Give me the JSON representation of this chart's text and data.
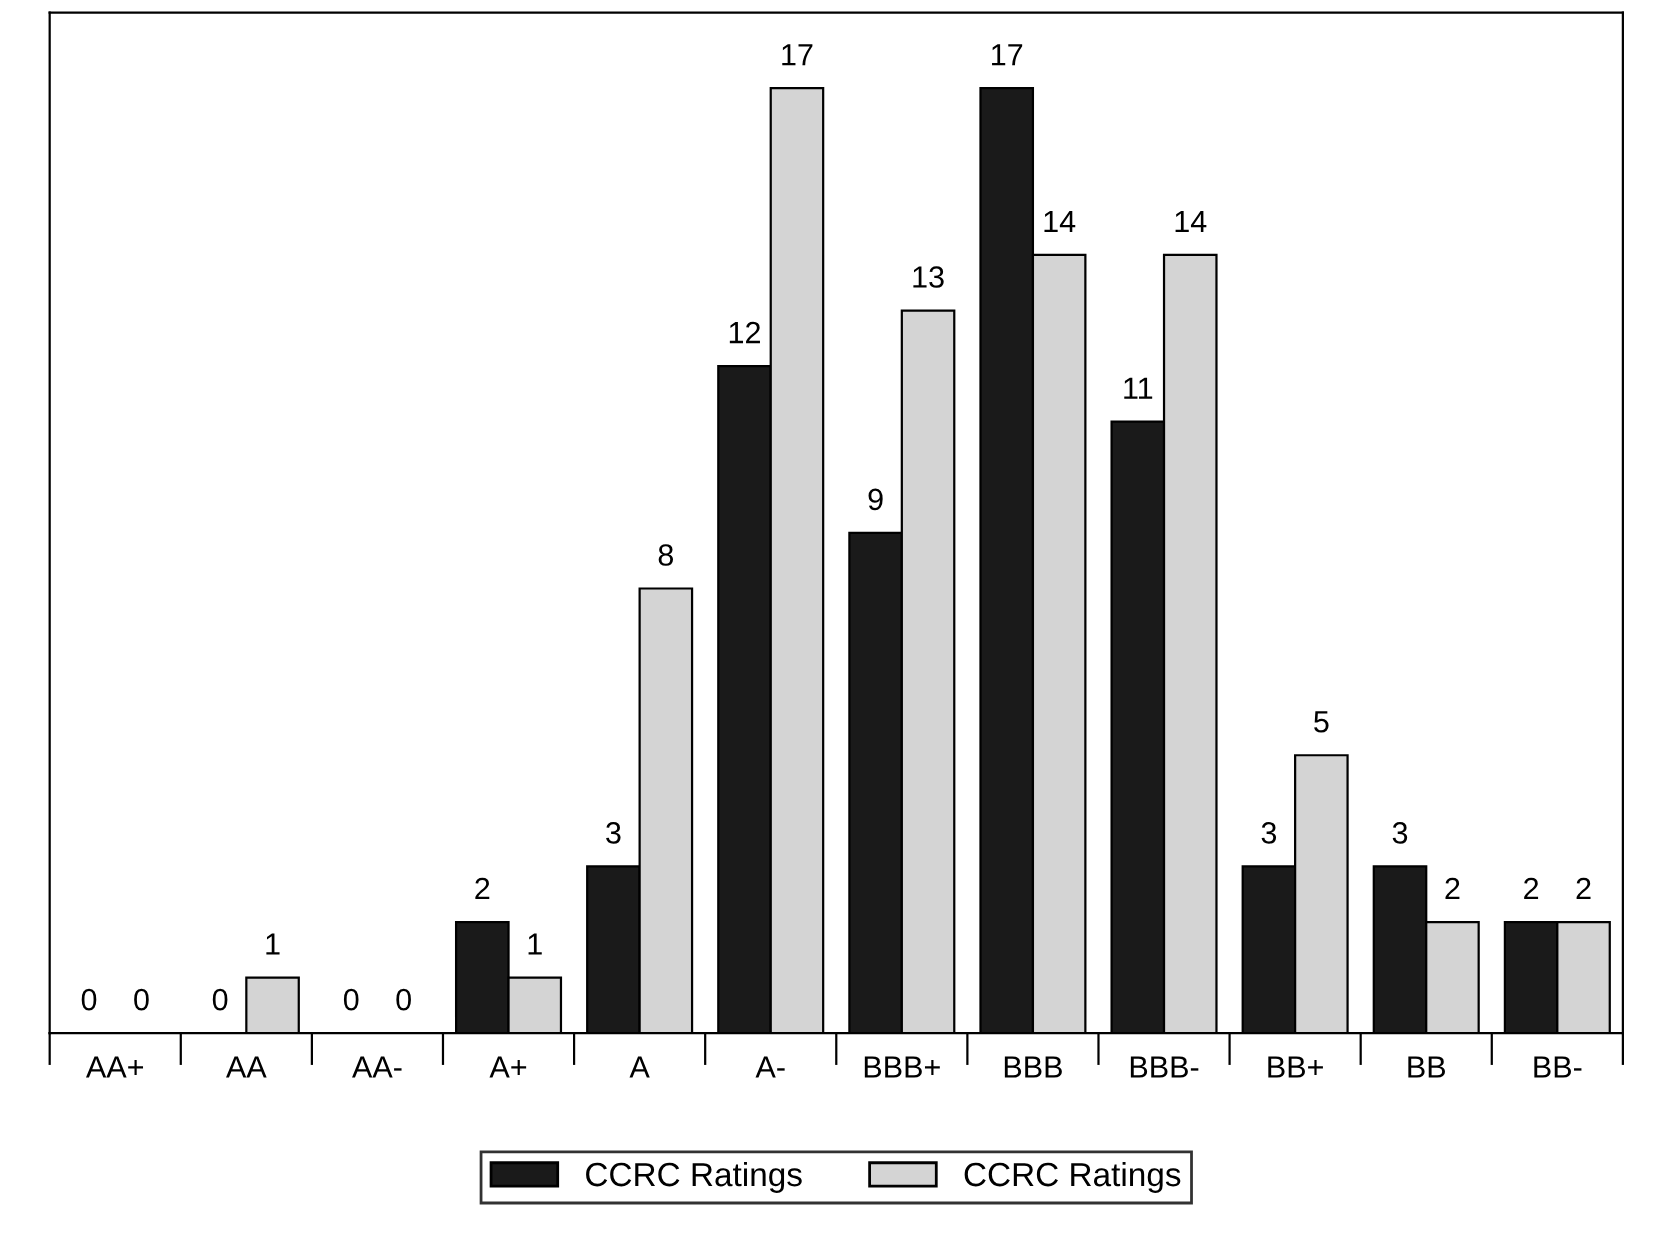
{
  "chart_data": {
    "type": "bar",
    "categories": [
      "AA+",
      "AA",
      "AA-",
      "A+",
      "A",
      "A-",
      "BBB+",
      "BBB",
      "BBB-",
      "BB+",
      "BB",
      "BB-"
    ],
    "series": [
      {
        "name": "CCRC Ratings",
        "color": "#1a1a1a",
        "values": [
          0,
          0,
          0,
          2,
          3,
          12,
          9,
          17,
          11,
          3,
          3,
          2
        ]
      },
      {
        "name": "CCRC Ratings",
        "color": "#d4d4d4",
        "values": [
          0,
          1,
          0,
          1,
          8,
          17,
          13,
          14,
          14,
          5,
          2,
          2
        ]
      }
    ],
    "data_labels": true,
    "legend": "bottom",
    "grid": false
  }
}
